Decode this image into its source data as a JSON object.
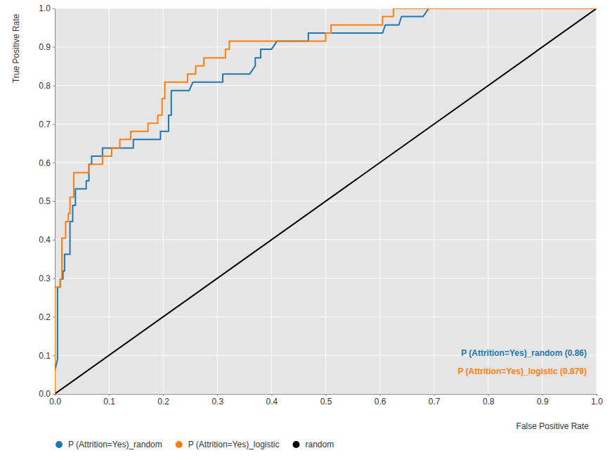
{
  "chart_data": {
    "type": "line",
    "x_label": "False Positive Rate",
    "y_label": "True Positive Rate",
    "xlim": [
      0,
      1
    ],
    "ylim": [
      0,
      1
    ],
    "xticks": [
      {
        "value": 0,
        "label": "0.0"
      },
      {
        "value": 0.1,
        "label": "0.1"
      },
      {
        "value": 0.2,
        "label": "0.2"
      },
      {
        "value": 0.3,
        "label": "0.3"
      },
      {
        "value": 0.4,
        "label": "0.4"
      },
      {
        "value": 0.5,
        "label": "0.5"
      },
      {
        "value": 0.6,
        "label": "0.6"
      },
      {
        "value": 0.7,
        "label": "0.7"
      },
      {
        "value": 0.8,
        "label": "0.8"
      },
      {
        "value": 0.9,
        "label": "0.9"
      },
      {
        "value": 1,
        "label": "1.0"
      }
    ],
    "yticks": [
      {
        "value": 0,
        "label": "0.0"
      },
      {
        "value": 0.1,
        "label": "0.1"
      },
      {
        "value": 0.2,
        "label": "0.2"
      },
      {
        "value": 0.3,
        "label": "0.3"
      },
      {
        "value": 0.4,
        "label": "0.4"
      },
      {
        "value": 0.5,
        "label": "0.5"
      },
      {
        "value": 0.6,
        "label": "0.6"
      },
      {
        "value": 0.7,
        "label": "0.7"
      },
      {
        "value": 0.8,
        "label": "0.8"
      },
      {
        "value": 0.9,
        "label": "0.9"
      },
      {
        "value": 1,
        "label": "1.0"
      }
    ],
    "grid": true,
    "legend": "bottom",
    "series": [
      {
        "name": "P (Attrition=Yes)_random",
        "color": "#1f77b4",
        "x": [
          0,
          0,
          0.005,
          0.005,
          0.01,
          0.01,
          0.015,
          0.015,
          0.018,
          0.018,
          0.028,
          0.028,
          0.033,
          0.033,
          0.038,
          0.038,
          0.058,
          0.058,
          0.063,
          0.063,
          0.068,
          0.068,
          0.088,
          0.088,
          0.145,
          0.145,
          0.195,
          0.195,
          0.21,
          0.21,
          0.215,
          0.215,
          0.248,
          0.255,
          0.31,
          0.31,
          0.36,
          0.37,
          0.37,
          0.38,
          0.38,
          0.4,
          0.41,
          0.468,
          0.468,
          0.605,
          0.61,
          0.635,
          0.64,
          0.68,
          0.69,
          1
        ],
        "values": [
          0,
          0.06,
          0.09,
          0.277,
          0.277,
          0.298,
          0.298,
          0.319,
          0.319,
          0.362,
          0.362,
          0.447,
          0.447,
          0.489,
          0.489,
          0.532,
          0.532,
          0.553,
          0.553,
          0.596,
          0.596,
          0.617,
          0.617,
          0.638,
          0.638,
          0.66,
          0.66,
          0.681,
          0.681,
          0.723,
          0.723,
          0.787,
          0.787,
          0.809,
          0.809,
          0.83,
          0.83,
          0.851,
          0.872,
          0.872,
          0.894,
          0.894,
          0.915,
          0.915,
          0.936,
          0.936,
          0.957,
          0.957,
          0.979,
          0.979,
          1,
          1
        ]
      },
      {
        "name": "P (Attrition=Yes)_logistic",
        "color": "#ff7f0e",
        "x": [
          0,
          0,
          0.01,
          0.01,
          0.013,
          0.013,
          0.02,
          0.02,
          0.025,
          0.025,
          0.028,
          0.028,
          0.035,
          0.035,
          0.063,
          0.063,
          0.088,
          0.088,
          0.105,
          0.105,
          0.12,
          0.12,
          0.14,
          0.14,
          0.172,
          0.172,
          0.19,
          0.19,
          0.198,
          0.198,
          0.203,
          0.203,
          0.245,
          0.245,
          0.26,
          0.26,
          0.275,
          0.275,
          0.315,
          0.315,
          0.322,
          0.322,
          0.5,
          0.5,
          0.51,
          0.51,
          0.605,
          0.605,
          0.625,
          0.625,
          1
        ],
        "values": [
          0,
          0.277,
          0.277,
          0.298,
          0.298,
          0.404,
          0.404,
          0.447,
          0.447,
          0.468,
          0.468,
          0.51,
          0.51,
          0.574,
          0.574,
          0.596,
          0.596,
          0.617,
          0.617,
          0.638,
          0.638,
          0.66,
          0.66,
          0.681,
          0.681,
          0.702,
          0.702,
          0.723,
          0.723,
          0.766,
          0.766,
          0.809,
          0.809,
          0.83,
          0.83,
          0.851,
          0.851,
          0.872,
          0.872,
          0.894,
          0.894,
          0.915,
          0.915,
          0.936,
          0.936,
          0.957,
          0.957,
          0.979,
          0.979,
          1,
          1
        ]
      },
      {
        "name": "random",
        "color": "#000000",
        "x": [
          0,
          1
        ],
        "values": [
          0,
          1
        ]
      }
    ],
    "annotations": [
      {
        "text": "P (Attrition=Yes)_random (0.86)",
        "color": "#1f77b4"
      },
      {
        "text": "P (Attrition=Yes)_logistic (0.879)",
        "color": "#ff7f0e"
      }
    ]
  }
}
